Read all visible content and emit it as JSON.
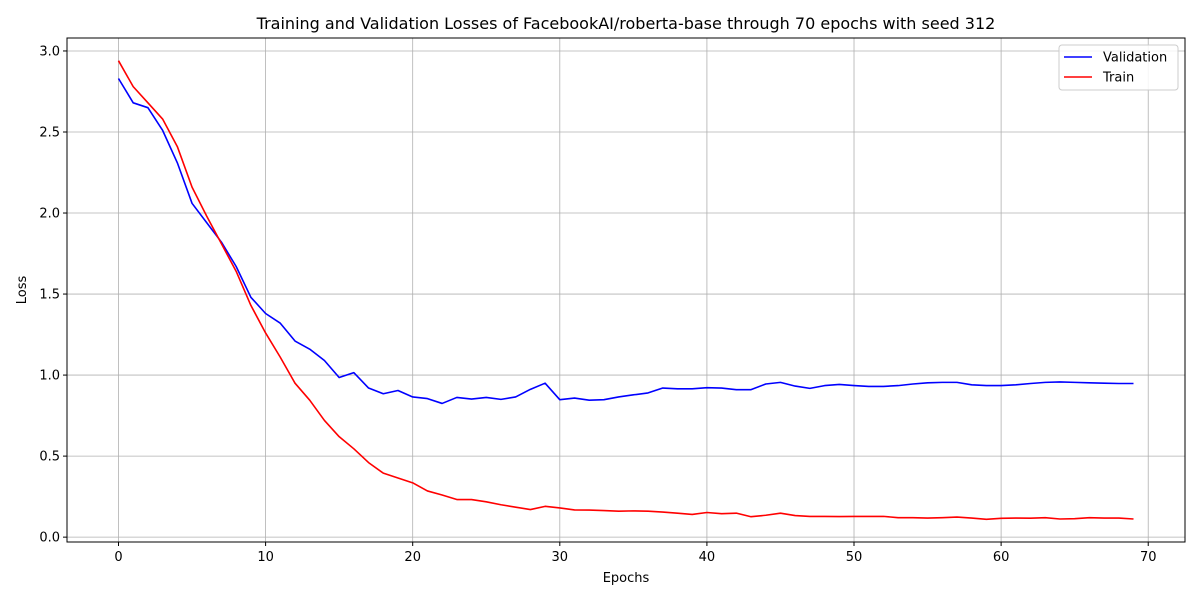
{
  "chart_data": {
    "type": "line",
    "title": "Training and Validation Losses of FacebookAI/roberta-base through 70 epochs with seed 312",
    "xlabel": "Epochs",
    "ylabel": "Loss",
    "xlim": [
      -3.5,
      72.5
    ],
    "ylim": [
      -0.03,
      3.08
    ],
    "xticks": [
      0,
      10,
      20,
      30,
      40,
      50,
      60,
      70
    ],
    "yticks": [
      0.0,
      0.5,
      1.0,
      1.5,
      2.0,
      2.5,
      3.0
    ],
    "xtick_labels": [
      "0",
      "10",
      "20",
      "30",
      "40",
      "50",
      "60",
      "70"
    ],
    "ytick_labels": [
      "0.0",
      "0.5",
      "1.0",
      "1.5",
      "2.0",
      "2.5",
      "3.0"
    ],
    "grid": true,
    "legend_position": "top-right",
    "series": [
      {
        "name": "Validation",
        "color": "#0000ff",
        "values": [
          2.83,
          2.68,
          2.65,
          2.51,
          2.31,
          2.06,
          1.94,
          1.82,
          1.67,
          1.48,
          1.38,
          1.32,
          1.21,
          1.16,
          1.09,
          0.985,
          1.015,
          0.92,
          0.885,
          0.905,
          0.865,
          0.855,
          0.825,
          0.862,
          0.852,
          0.862,
          0.85,
          0.865,
          0.912,
          0.95,
          0.848,
          0.858,
          0.845,
          0.848,
          0.865,
          0.878,
          0.89,
          0.92,
          0.915,
          0.915,
          0.922,
          0.92,
          0.91,
          0.91,
          0.945,
          0.955,
          0.932,
          0.918,
          0.935,
          0.942,
          0.935,
          0.93,
          0.93,
          0.935,
          0.945,
          0.952,
          0.955,
          0.955,
          0.94,
          0.935,
          0.935,
          0.94,
          0.948,
          0.955,
          0.958,
          0.955,
          0.952,
          0.95,
          0.948,
          0.948
        ]
      },
      {
        "name": "Train",
        "color": "#ff0000",
        "values": [
          2.94,
          2.78,
          2.68,
          2.58,
          2.41,
          2.16,
          1.98,
          1.81,
          1.64,
          1.43,
          1.26,
          1.11,
          0.95,
          0.845,
          0.72,
          0.62,
          0.545,
          0.46,
          0.395,
          0.365,
          0.335,
          0.285,
          0.26,
          0.232,
          0.232,
          0.218,
          0.2,
          0.185,
          0.17,
          0.19,
          0.18,
          0.168,
          0.167,
          0.164,
          0.16,
          0.162,
          0.16,
          0.155,
          0.148,
          0.14,
          0.152,
          0.145,
          0.148,
          0.126,
          0.135,
          0.148,
          0.133,
          0.128,
          0.128,
          0.127,
          0.128,
          0.128,
          0.128,
          0.12,
          0.12,
          0.118,
          0.12,
          0.124,
          0.118,
          0.11,
          0.116,
          0.118,
          0.117,
          0.12,
          0.112,
          0.114,
          0.12,
          0.118,
          0.118,
          0.112
        ]
      }
    ]
  }
}
